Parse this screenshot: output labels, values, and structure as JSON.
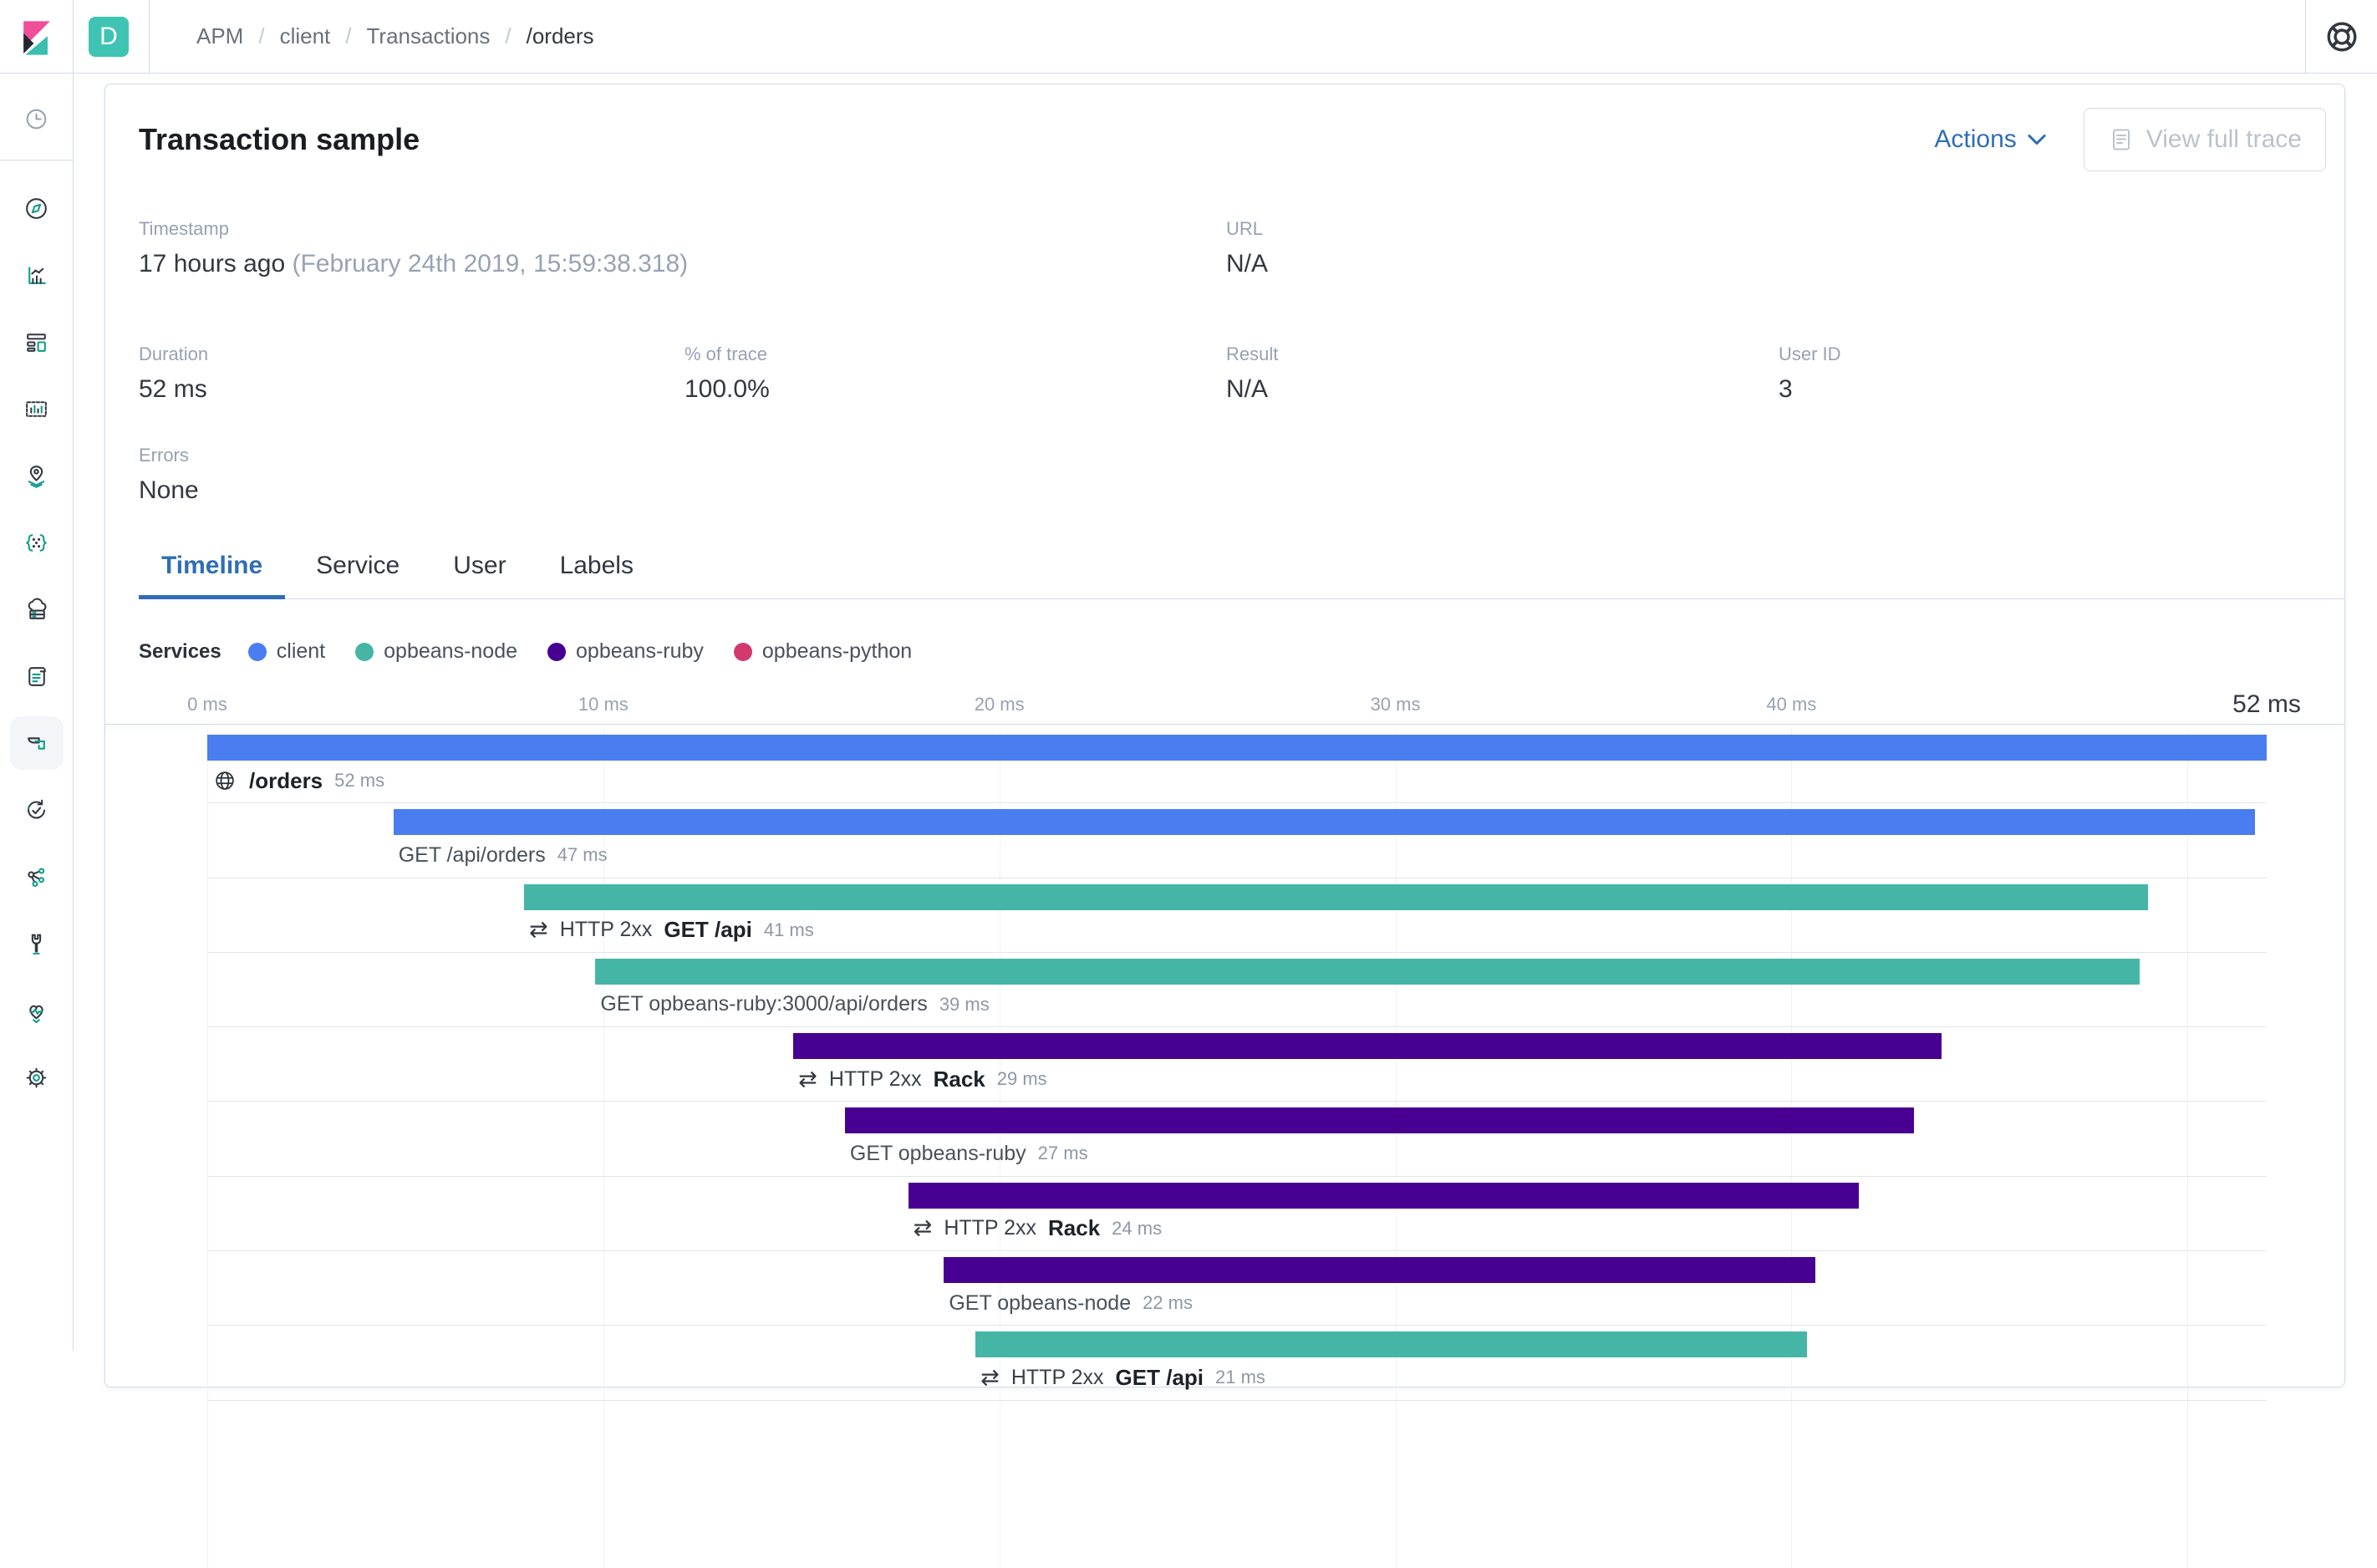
{
  "topbar": {
    "space_badge": "D",
    "breadcrumb_separator": "/",
    "breadcrumbs": [
      "APM",
      "client",
      "Transactions",
      "/orders"
    ],
    "help_icon": "help-icon"
  },
  "sidebar": {
    "icons": [
      {
        "name": "recent",
        "selected": false
      },
      {
        "name": "discover",
        "selected": false
      },
      {
        "name": "visualize",
        "selected": false
      },
      {
        "name": "dashboard",
        "selected": false
      },
      {
        "name": "canvas",
        "selected": false
      },
      {
        "name": "maps",
        "selected": false
      },
      {
        "name": "machine-learning",
        "selected": false
      },
      {
        "name": "infrastructure",
        "selected": false
      },
      {
        "name": "logs",
        "selected": false
      },
      {
        "name": "apm",
        "selected": true
      },
      {
        "name": "uptime",
        "selected": false
      },
      {
        "name": "graph",
        "selected": false
      },
      {
        "name": "dev-tools",
        "selected": false
      },
      {
        "name": "monitoring",
        "selected": false
      },
      {
        "name": "management",
        "selected": false
      }
    ]
  },
  "header": {
    "title": "Transaction sample",
    "actions_label": "Actions",
    "view_full_trace_label": "View full trace"
  },
  "metadata": {
    "fields": [
      {
        "id": "timestamp",
        "label": "Timestamp",
        "value": "17 hours ago",
        "detail": " (February 24th 2019, 15:59:38.318)",
        "col": "1 / 3",
        "row": 1
      },
      {
        "id": "url",
        "label": "URL",
        "value": "N/A",
        "col": "3 / 5",
        "row": 1
      },
      {
        "id": "duration",
        "label": "Duration",
        "value": "52 ms",
        "col": "1 / 2",
        "row": 2
      },
      {
        "id": "pct-of-trace",
        "label": "% of trace",
        "value": "100.0%",
        "col": "2 / 3",
        "row": 2
      },
      {
        "id": "result",
        "label": "Result",
        "value": "N/A",
        "col": "3 / 4",
        "row": 2
      },
      {
        "id": "user-id",
        "label": "User ID",
        "value": "3",
        "col": "4 / 5",
        "row": 2
      },
      {
        "id": "errors",
        "label": "Errors",
        "value": "None",
        "col": "1 / 2",
        "row": 3
      }
    ]
  },
  "tabs": [
    {
      "label": "Timeline",
      "active": true
    },
    {
      "label": "Service",
      "active": false
    },
    {
      "label": "User",
      "active": false
    },
    {
      "label": "Labels",
      "active": false
    }
  ],
  "legend": {
    "title": "Services",
    "items": [
      {
        "label": "client",
        "color": "#4a7df0"
      },
      {
        "label": "opbeans-node",
        "color": "#45b5a6"
      },
      {
        "label": "opbeans-ruby",
        "color": "#470092"
      },
      {
        "label": "opbeans-python",
        "color": "#d23a6e"
      }
    ]
  },
  "colors": {
    "client": "#4a7df0",
    "opbeans-node": "#45b5a6",
    "opbeans-ruby": "#470092",
    "opbeans-python": "#d23a6e",
    "link_blue": "#2f6eb5"
  },
  "icons": {
    "merge_glyph": "⇄"
  },
  "chart_data": {
    "type": "waterfall",
    "unit": "ms",
    "axis_range_ms": [
      0,
      52
    ],
    "total_ms": 52,
    "axis_ticks": [
      {
        "label": "0 ms",
        "ms": 0
      },
      {
        "label": "10 ms",
        "ms": 10
      },
      {
        "label": "20 ms",
        "ms": 20
      },
      {
        "label": "30 ms",
        "ms": 30
      },
      {
        "label": "40 ms",
        "ms": 40
      }
    ],
    "axis_total_label": "52 ms",
    "gridlines_ms": [
      0,
      10,
      20,
      30,
      40,
      50
    ],
    "items": [
      {
        "kind": "transaction",
        "icon": "globe",
        "prefix": "",
        "name": "/orders",
        "bold": true,
        "duration_label": "52 ms",
        "start_ms": 0,
        "duration_ms": 52,
        "service": "client"
      },
      {
        "kind": "span",
        "icon": "",
        "prefix": "",
        "name": "GET /api/orders",
        "bold": false,
        "duration_label": "47 ms",
        "start_ms": 4.7,
        "duration_ms": 47,
        "service": "client"
      },
      {
        "kind": "transaction",
        "icon": "merge",
        "prefix": "HTTP 2xx",
        "name": "GET /api",
        "bold": true,
        "duration_label": "41 ms",
        "start_ms": 8.0,
        "duration_ms": 41,
        "service": "opbeans-node"
      },
      {
        "kind": "span",
        "icon": "",
        "prefix": "",
        "name": "GET opbeans-ruby:3000/api/orders",
        "bold": false,
        "duration_label": "39 ms",
        "start_ms": 9.8,
        "duration_ms": 39,
        "service": "opbeans-node"
      },
      {
        "kind": "transaction",
        "icon": "merge",
        "prefix": "HTTP 2xx",
        "name": "Rack",
        "bold": true,
        "duration_label": "29 ms",
        "start_ms": 14.8,
        "duration_ms": 29,
        "service": "opbeans-ruby"
      },
      {
        "kind": "span",
        "icon": "",
        "prefix": "",
        "name": "GET opbeans-ruby",
        "bold": false,
        "duration_label": "27 ms",
        "start_ms": 16.1,
        "duration_ms": 27,
        "service": "opbeans-ruby"
      },
      {
        "kind": "transaction",
        "icon": "merge",
        "prefix": "HTTP 2xx",
        "name": "Rack",
        "bold": true,
        "duration_label": "24 ms",
        "start_ms": 17.7,
        "duration_ms": 24,
        "service": "opbeans-ruby"
      },
      {
        "kind": "span",
        "icon": "",
        "prefix": "",
        "name": "GET opbeans-node",
        "bold": false,
        "duration_label": "22 ms",
        "start_ms": 18.6,
        "duration_ms": 22,
        "service": "opbeans-ruby"
      },
      {
        "kind": "transaction",
        "icon": "merge",
        "prefix": "HTTP 2xx",
        "name": "GET /api",
        "bold": true,
        "duration_label": "21 ms",
        "start_ms": 19.4,
        "duration_ms": 21,
        "service": "opbeans-node"
      }
    ]
  }
}
